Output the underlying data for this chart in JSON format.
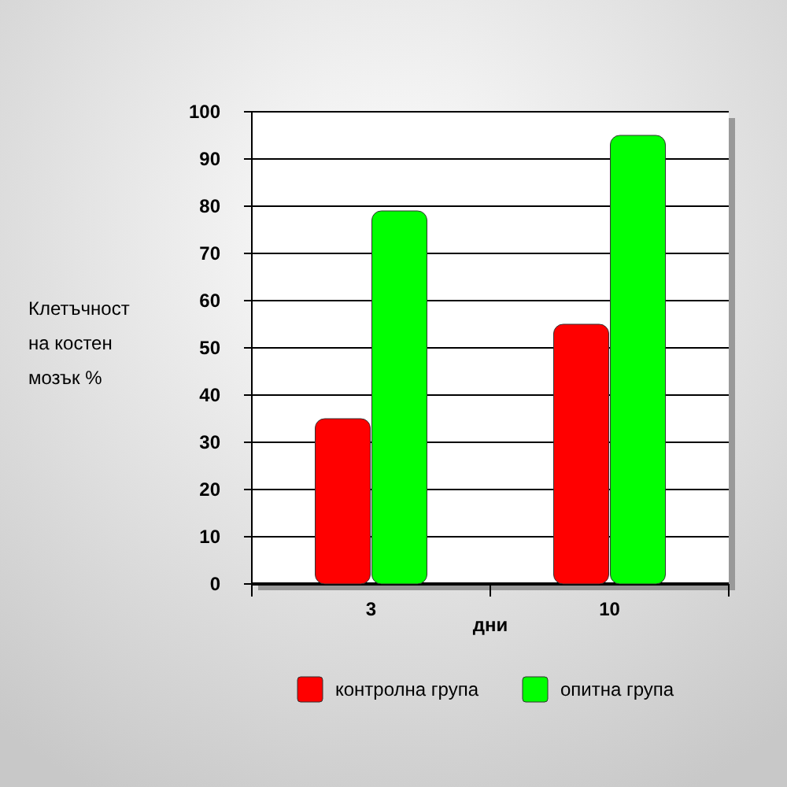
{
  "chart_data": {
    "type": "bar",
    "categories": [
      "3",
      "10"
    ],
    "xlabel": "дни",
    "ylabel": "Клетъчност\nна костен\nмозък %",
    "series": [
      {
        "name": "контролна група",
        "color": "#ff0000",
        "values": [
          35,
          55
        ]
      },
      {
        "name": "опитна група",
        "color": "#00ff00",
        "values": [
          79,
          95
        ]
      }
    ],
    "ylim": [
      0,
      100
    ],
    "yticks": [
      0,
      10,
      20,
      30,
      40,
      50,
      60,
      70,
      80,
      90,
      100
    ],
    "grid": "y",
    "legend": "bottom"
  }
}
